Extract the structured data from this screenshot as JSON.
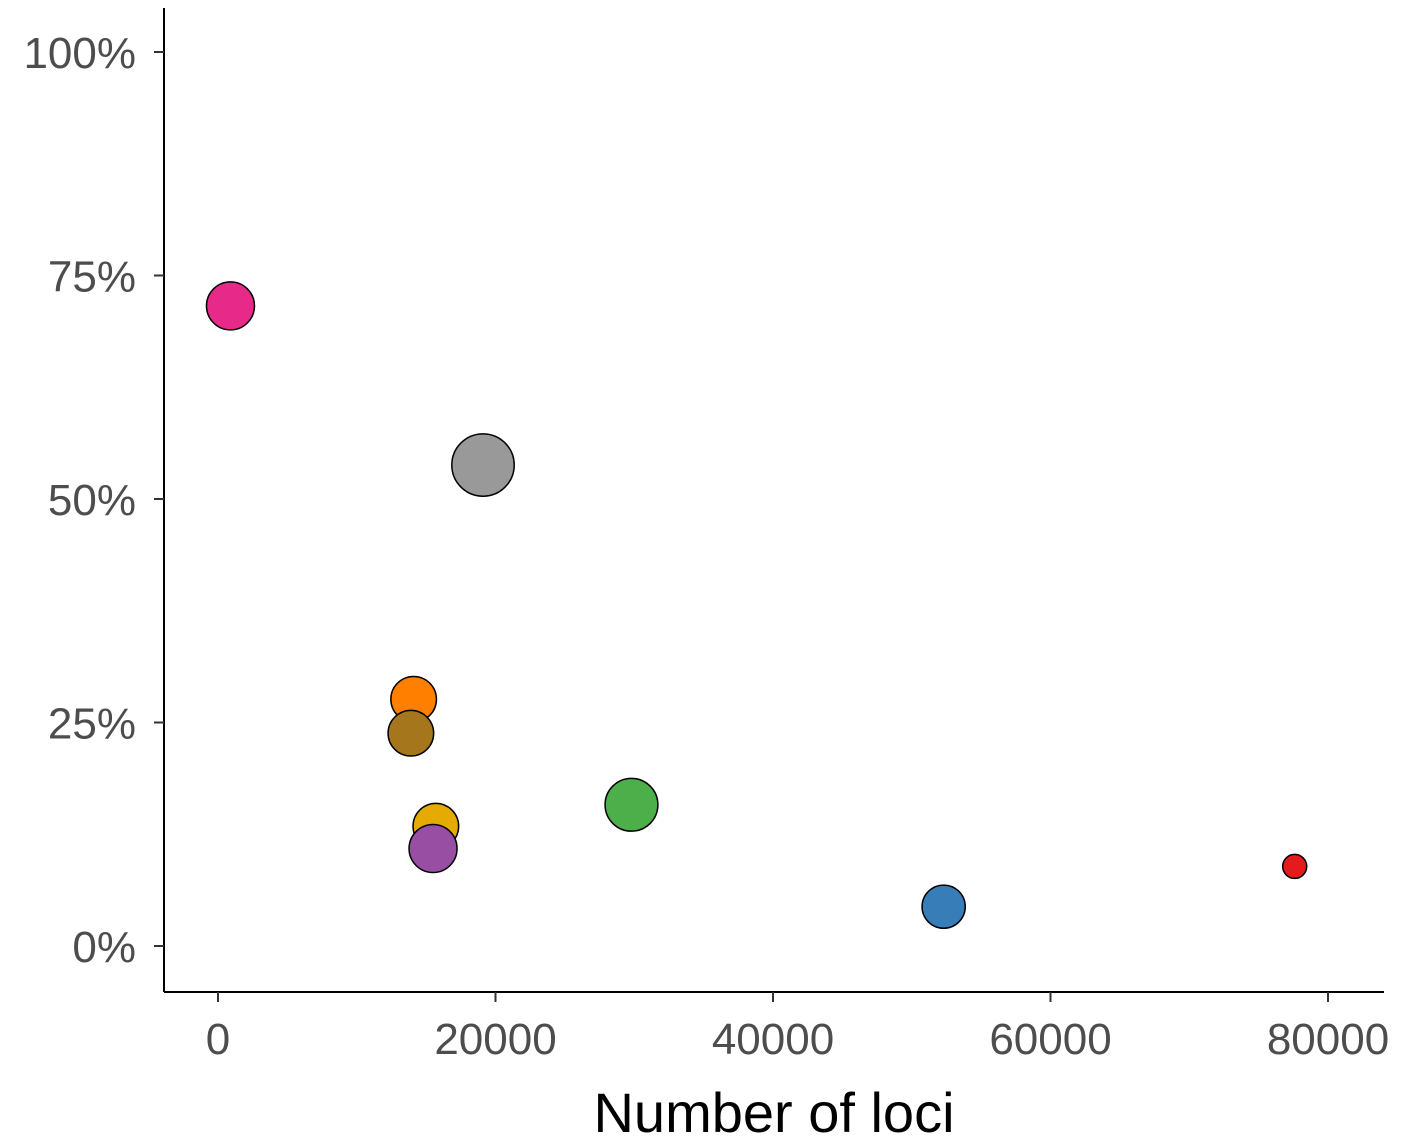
{
  "chart_data": {
    "type": "scatter",
    "title": "",
    "xlabel": "Number of loci",
    "ylabel": "",
    "xlim": [
      -4000,
      84000
    ],
    "ylim": [
      -5,
      105
    ],
    "x_ticks": [
      0,
      20000,
      40000,
      60000,
      80000
    ],
    "x_tick_labels": [
      "0",
      "20000",
      "40000",
      "60000",
      "80000"
    ],
    "y_ticks": [
      0,
      25,
      50,
      75,
      100
    ],
    "y_tick_labels": [
      "0%",
      "25%",
      "50%",
      "75%",
      "100%"
    ],
    "grid": false,
    "points": [
      {
        "x": 900,
        "y": 71.6,
        "color": "#e7298a",
        "size": 1.0
      },
      {
        "x": 19100,
        "y": 53.8,
        "color": "#999999",
        "size": 1.3
      },
      {
        "x": 14100,
        "y": 27.6,
        "color": "#ff7f00",
        "size": 0.95
      },
      {
        "x": 13900,
        "y": 23.8,
        "color": "#a6761d",
        "size": 0.95
      },
      {
        "x": 15700,
        "y": 13.4,
        "color": "#e6ab02",
        "size": 0.95
      },
      {
        "x": 15500,
        "y": 10.9,
        "color": "#984ea3",
        "size": 1.0
      },
      {
        "x": 29800,
        "y": 15.8,
        "color": "#4daf4a",
        "size": 1.1
      },
      {
        "x": 52300,
        "y": 4.4,
        "color": "#377eb8",
        "size": 0.9
      },
      {
        "x": 77600,
        "y": 8.9,
        "color": "#e41a1c",
        "size": 0.5
      }
    ]
  }
}
